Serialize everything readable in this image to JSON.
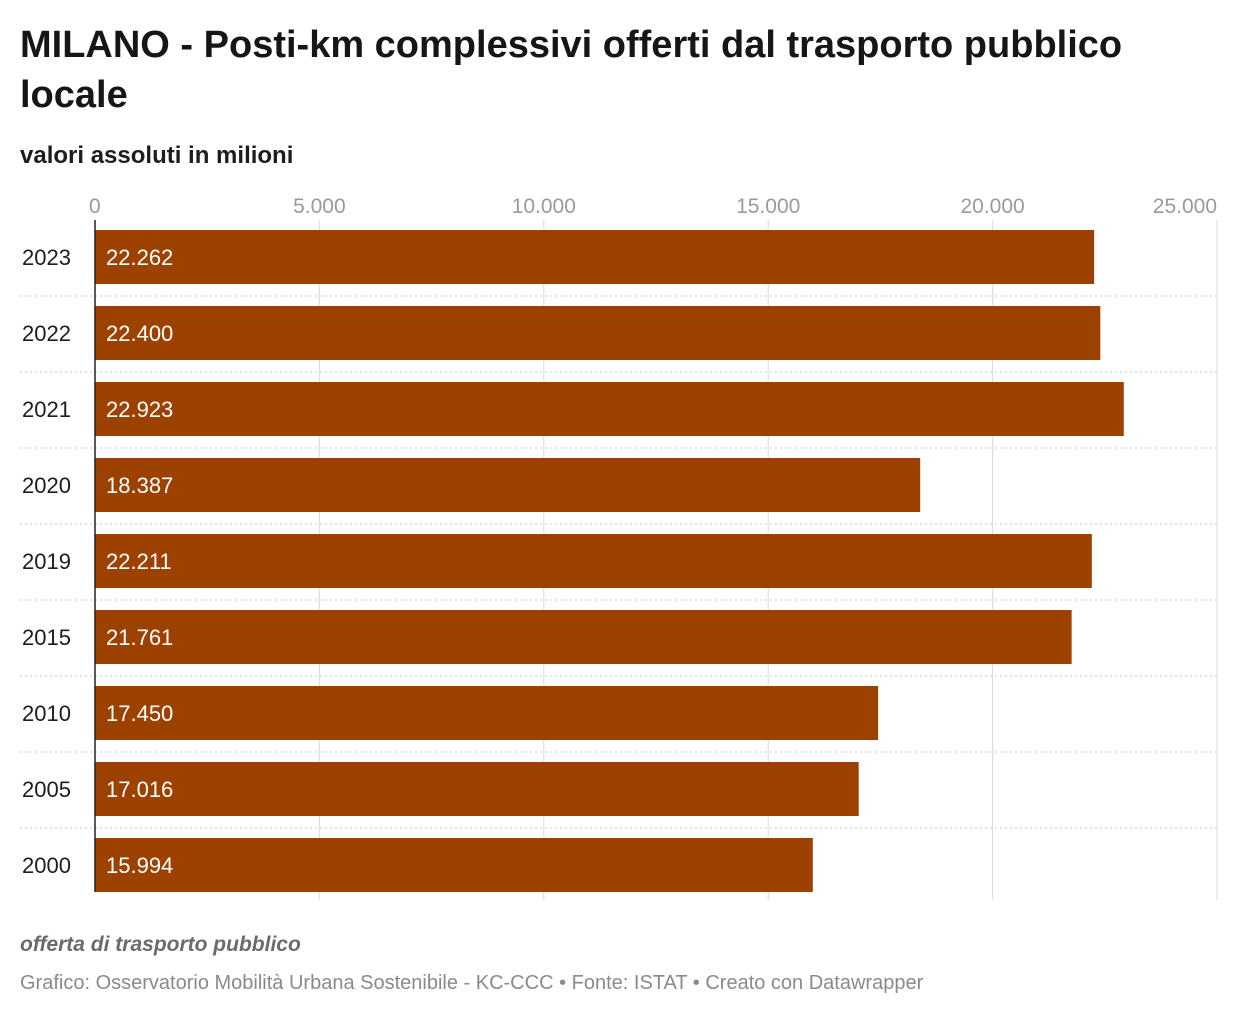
{
  "chart_data": {
    "type": "bar",
    "orientation": "horizontal",
    "title": "MILANO - Posti-km complessivi offerti dal trasporto pubblico locale",
    "subtitle": "valori assoluti in milioni",
    "categories": [
      "2023",
      "2022",
      "2021",
      "2020",
      "2019",
      "2015",
      "2010",
      "2005",
      "2000"
    ],
    "values": [
      22262,
      22400,
      22923,
      18387,
      22211,
      21761,
      17450,
      17016,
      15994
    ],
    "value_labels": [
      "22.262",
      "22.400",
      "22.923",
      "18.387",
      "22.211",
      "21.761",
      "17.450",
      "17.016",
      "15.994"
    ],
    "xlim": [
      0,
      25000
    ],
    "x_ticks": [
      0,
      5000,
      10000,
      15000,
      20000,
      25000
    ],
    "x_tick_labels": [
      "0",
      "5.000",
      "10.000",
      "15.000",
      "20.000",
      "25.000"
    ],
    "x_axis_position": "top",
    "grid": true,
    "bar_color": "#9c4100",
    "grid_color": "#d9d9d9"
  },
  "footer": {
    "note": "offerta di trasporto pubblico",
    "credits": "Grafico: Osservatorio Mobilità Urbana Sostenibile - KC-CCC • Fonte: ISTAT • Creato con Datawrapper"
  }
}
